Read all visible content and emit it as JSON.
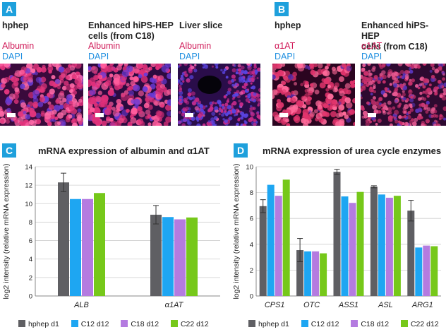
{
  "panelA": {
    "label": "A",
    "columns": [
      {
        "title_lines": [
          "hphep"
        ],
        "stains": [
          "Albumin",
          "DAPI"
        ]
      },
      {
        "title_lines": [
          "Enhanced hiPS-HEP",
          "cells (from C18)"
        ],
        "stains": [
          "Albumin",
          "DAPI"
        ]
      },
      {
        "title_lines": [
          "Liver slice"
        ],
        "stains": [
          "Albumin",
          "DAPI"
        ]
      }
    ]
  },
  "panelB": {
    "label": "B",
    "columns": [
      {
        "title_lines": [
          "hphep"
        ],
        "stains": [
          "α1AT",
          "DAPI"
        ]
      },
      {
        "title_lines": [
          "Enhanced hiPS-HEP",
          "cells (from C18)"
        ],
        "stains": [
          "α1AT",
          "DAPI"
        ]
      }
    ]
  },
  "colors": {
    "hphep d1": "#5f5f63",
    "C12 d12": "#1ea6f2",
    "C18 d12": "#b47be0",
    "C22 d12": "#76c81a",
    "badge": "#1ea0dc"
  },
  "legend": [
    "hphep d1",
    "C12 d12",
    "C18 d12",
    "C22 d12"
  ],
  "panelC": {
    "label": "C"
  },
  "panelD": {
    "label": "D"
  },
  "chart_data": [
    {
      "type": "bar",
      "title": "mRNA expression of albumin and α1AT",
      "ylabel": "log2 intensity (relative mRNA expression)",
      "ylim": [
        0,
        14
      ],
      "yticks": [
        0,
        2,
        4,
        6,
        8,
        10,
        12,
        14
      ],
      "categories": [
        "ALB",
        "α1AT"
      ],
      "series": [
        {
          "name": "hphep d1",
          "values": [
            12.3,
            8.8
          ],
          "errors": [
            1.0,
            1.0
          ]
        },
        {
          "name": "C12 d12",
          "values": [
            10.5,
            8.55
          ]
        },
        {
          "name": "C18 d12",
          "values": [
            10.5,
            8.3
          ]
        },
        {
          "name": "C22 d12",
          "values": [
            11.15,
            8.5
          ]
        }
      ],
      "grid": true,
      "legend_position": "bottom"
    },
    {
      "type": "bar",
      "title": "mRNA expression of urea cycle enzymes",
      "ylabel": "log2 intensity (relative mRNA expression)",
      "ylim": [
        0,
        10
      ],
      "yticks": [
        0,
        2,
        4,
        6,
        8,
        10
      ],
      "categories": [
        "CPS1",
        "OTC",
        "ASS1",
        "ASL",
        "ARG1"
      ],
      "series": [
        {
          "name": "hphep d1",
          "values": [
            6.95,
            3.55,
            9.6,
            8.45,
            6.6
          ],
          "errors": [
            0.5,
            0.9,
            0.2,
            0.08,
            0.8
          ]
        },
        {
          "name": "C12 d12",
          "values": [
            8.6,
            3.45,
            7.7,
            7.85,
            3.75
          ]
        },
        {
          "name": "C18 d12",
          "values": [
            7.75,
            3.45,
            7.2,
            7.6,
            3.9
          ]
        },
        {
          "name": "C22 d12",
          "values": [
            9.0,
            3.3,
            8.05,
            7.75,
            3.85
          ]
        }
      ],
      "grid": true,
      "legend_position": "bottom"
    }
  ]
}
